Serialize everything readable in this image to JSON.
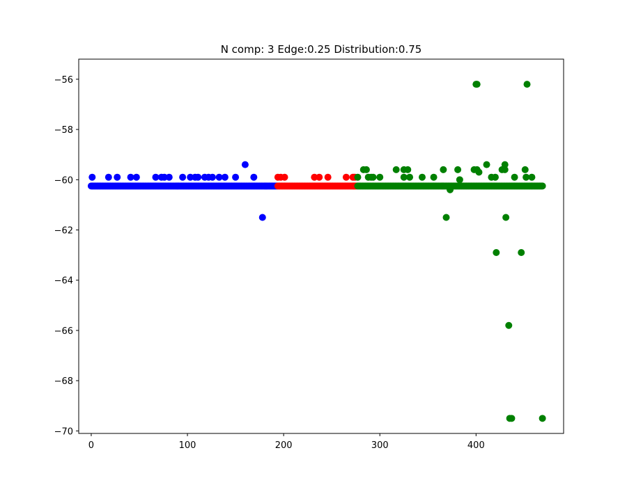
{
  "chart_data": {
    "type": "scatter",
    "title": "N comp: 3 Edge:0.25 Distribution:0.75",
    "xlabel": "",
    "ylabel": "",
    "xlim": [
      -13,
      491
    ],
    "ylim": [
      -70.1,
      -55.2
    ],
    "x_ticks": [
      0,
      100,
      200,
      300,
      400
    ],
    "y_ticks": [
      -70,
      -68,
      -66,
      -64,
      -62,
      -60,
      -58,
      -56
    ],
    "x_tick_labels": [
      "0",
      "100",
      "200",
      "300",
      "400"
    ],
    "y_tick_labels": [
      "−70",
      "−68",
      "−66",
      "−64",
      "−62",
      "−60",
      "−58",
      "−56"
    ],
    "grid": false,
    "series": [
      {
        "color": "#0000ff",
        "baseline": {
          "x_start": 0,
          "x_end": 193,
          "y": -60.25
        },
        "points": [
          [
            1,
            -59.9
          ],
          [
            18,
            -59.9
          ],
          [
            27,
            -59.9
          ],
          [
            41,
            -59.9
          ],
          [
            47,
            -59.9
          ],
          [
            67,
            -59.9
          ],
          [
            73,
            -59.9
          ],
          [
            76,
            -59.9
          ],
          [
            81,
            -59.9
          ],
          [
            95,
            -59.9
          ],
          [
            103,
            -59.9
          ],
          [
            108,
            -59.9
          ],
          [
            111,
            -59.9
          ],
          [
            118,
            -59.9
          ],
          [
            122,
            -59.9
          ],
          [
            126,
            -59.9
          ],
          [
            133,
            -59.9
          ],
          [
            139,
            -59.9
          ],
          [
            150,
            -59.9
          ],
          [
            160,
            -59.4
          ],
          [
            169,
            -59.9
          ],
          [
            178,
            -61.5
          ]
        ]
      },
      {
        "color": "#ff0000",
        "baseline": {
          "x_start": 194,
          "x_end": 276,
          "y": -60.25
        },
        "points": [
          [
            194,
            -59.9
          ],
          [
            197,
            -59.9
          ],
          [
            201,
            -59.9
          ],
          [
            232,
            -59.9
          ],
          [
            237,
            -59.9
          ],
          [
            246,
            -59.9
          ],
          [
            265,
            -59.9
          ],
          [
            272,
            -59.9
          ],
          [
            274,
            -59.9
          ]
        ]
      },
      {
        "color": "#008000",
        "baseline": {
          "x_start": 277,
          "x_end": 469,
          "y": -60.25
        },
        "points": [
          [
            277,
            -59.9
          ],
          [
            283,
            -59.6
          ],
          [
            286,
            -59.6
          ],
          [
            288,
            -59.9
          ],
          [
            291,
            -59.9
          ],
          [
            293,
            -59.9
          ],
          [
            300,
            -59.9
          ],
          [
            317,
            -59.6
          ],
          [
            325,
            -59.9
          ],
          [
            325,
            -59.6
          ],
          [
            329,
            -59.6
          ],
          [
            331,
            -59.9
          ],
          [
            344,
            -59.9
          ],
          [
            356,
            -59.9
          ],
          [
            366,
            -59.6
          ],
          [
            369,
            -61.5
          ],
          [
            373,
            -60.4
          ],
          [
            381,
            -59.6
          ],
          [
            383,
            -60.0
          ],
          [
            398,
            -59.6
          ],
          [
            400,
            -56.2
          ],
          [
            401,
            -56.2
          ],
          [
            401,
            -59.6
          ],
          [
            403,
            -59.7
          ],
          [
            411,
            -59.4
          ],
          [
            416,
            -59.9
          ],
          [
            420,
            -59.9
          ],
          [
            421,
            -62.9
          ],
          [
            427,
            -59.6
          ],
          [
            430,
            -59.4
          ],
          [
            430,
            -59.6
          ],
          [
            431,
            -61.5
          ],
          [
            434,
            -65.8
          ],
          [
            435,
            -69.5
          ],
          [
            437,
            -69.5
          ],
          [
            440,
            -59.9
          ],
          [
            447,
            -62.9
          ],
          [
            451,
            -59.6
          ],
          [
            452,
            -59.9
          ],
          [
            453,
            -56.2
          ],
          [
            458,
            -59.9
          ],
          [
            469,
            -69.5
          ]
        ]
      }
    ]
  }
}
